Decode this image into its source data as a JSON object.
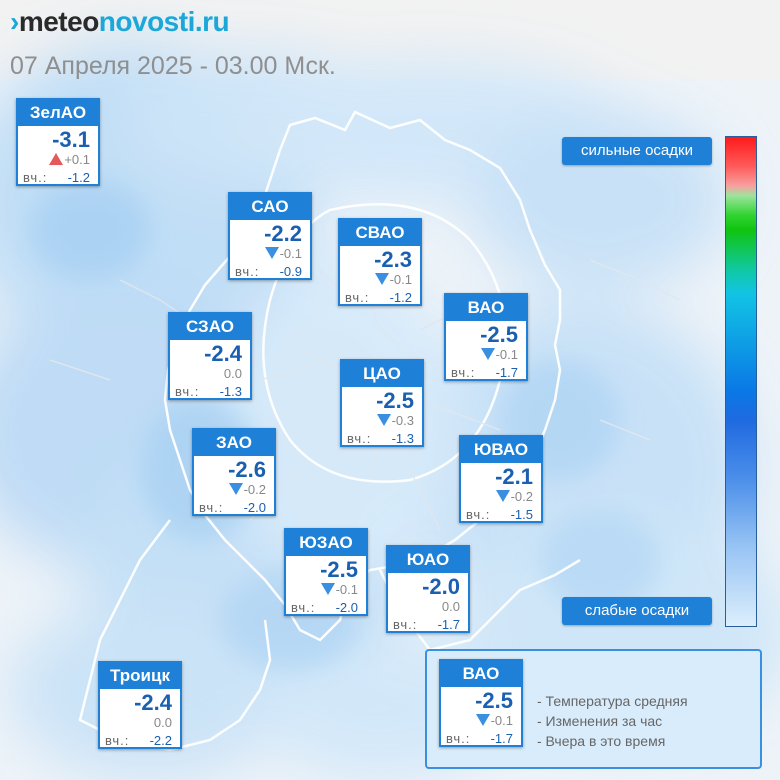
{
  "header": {
    "logo_mark": "›",
    "logo_part1": "meteo",
    "logo_part2": "novosti.ru",
    "datetime": "07 Апреля 2025 - 03.00 Мск."
  },
  "districts": [
    {
      "name": "ЗелАО",
      "temp": "-3.1",
      "trend": "up",
      "delta": "+0.1",
      "yest_label": "вч.:",
      "yest": "-1.2"
    },
    {
      "name": "САО",
      "temp": "-2.2",
      "trend": "down",
      "delta": "-0.1",
      "yest_label": "вч.:",
      "yest": "-0.9"
    },
    {
      "name": "СВАО",
      "temp": "-2.3",
      "trend": "down",
      "delta": "-0.1",
      "yest_label": "вч.:",
      "yest": "-1.2"
    },
    {
      "name": "ВАО",
      "temp": "-2.5",
      "trend": "down",
      "delta": "-0.1",
      "yest_label": "вч.:",
      "yest": "-1.7"
    },
    {
      "name": "СЗАО",
      "temp": "-2.4",
      "trend": "none",
      "delta": "0.0",
      "yest_label": "вч.:",
      "yest": "-1.3"
    },
    {
      "name": "ЦАО",
      "temp": "-2.5",
      "trend": "down",
      "delta": "-0.3",
      "yest_label": "вч.:",
      "yest": "-1.3"
    },
    {
      "name": "ЗАО",
      "temp": "-2.6",
      "trend": "down",
      "delta": "-0.2",
      "yest_label": "вч.:",
      "yest": "-2.0"
    },
    {
      "name": "ЮВАО",
      "temp": "-2.1",
      "trend": "down",
      "delta": "-0.2",
      "yest_label": "вч.:",
      "yest": "-1.5"
    },
    {
      "name": "ЮЗАО",
      "temp": "-2.5",
      "trend": "down",
      "delta": "-0.1",
      "yest_label": "вч.:",
      "yest": "-2.0"
    },
    {
      "name": "ЮАО",
      "temp": "-2.0",
      "trend": "none",
      "delta": "0.0",
      "yest_label": "вч.:",
      "yest": "-1.7"
    },
    {
      "name": "Троицк",
      "temp": "-2.4",
      "trend": "none",
      "delta": "0.0",
      "yest_label": "вч.:",
      "yest": "-2.2"
    }
  ],
  "scale": {
    "strong_label": "сильные осадки",
    "weak_label": "слабые осадки"
  },
  "legend": {
    "sample": {
      "name": "ВАО",
      "temp": "-2.5",
      "trend": "down",
      "delta": "-0.1",
      "yest_label": "вч.:",
      "yest": "-1.7"
    },
    "lines": [
      "- Температура средняя",
      "- Изменения за час",
      "- Вчера в это время"
    ]
  },
  "colors": {
    "accent": "#1e80d6",
    "temp_text": "#1a5fb0",
    "trend_up": "#e45a5a",
    "trend_down": "#3a8fe0"
  }
}
